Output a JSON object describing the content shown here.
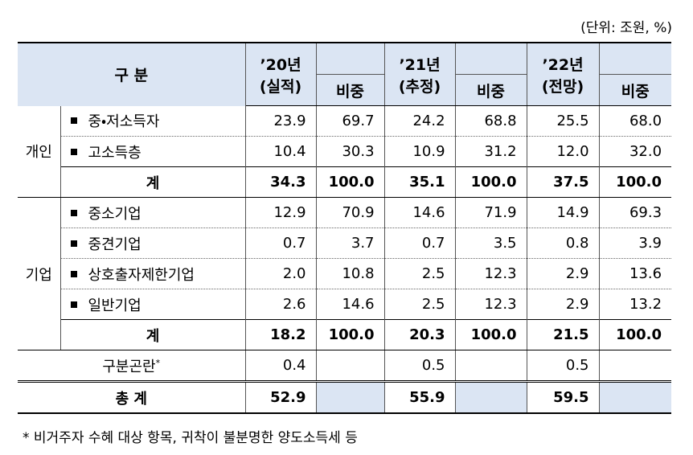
{
  "unit": "(단위: 조원, %)",
  "header": {
    "category": "구 분",
    "years": [
      {
        "year": "’20년",
        "basis": "(실적)",
        "share": "비중"
      },
      {
        "year": "’21년",
        "basis": "(추정)",
        "share": "비중"
      },
      {
        "year": "’22년",
        "basis": "(전망)",
        "share": "비중"
      }
    ]
  },
  "groups": [
    {
      "name": "개인",
      "rows": [
        {
          "label": "중・저소득자",
          "values": [
            "23.9",
            "69.7",
            "24.2",
            "68.8",
            "25.5",
            "68.0"
          ]
        },
        {
          "label": "고소득층",
          "values": [
            "10.4",
            "30.3",
            "10.9",
            "31.2",
            "12.0",
            "32.0"
          ]
        }
      ],
      "subtotal": {
        "label": "계",
        "values": [
          "34.3",
          "100.0",
          "35.1",
          "100.0",
          "37.5",
          "100.0"
        ]
      }
    },
    {
      "name": "기업",
      "rows": [
        {
          "label": "중소기업",
          "values": [
            "12.9",
            "70.9",
            "14.6",
            "71.9",
            "14.9",
            "69.3"
          ]
        },
        {
          "label": "중견기업",
          "values": [
            "0.7",
            "3.7",
            "0.7",
            "3.5",
            "0.8",
            "3.9"
          ]
        },
        {
          "label": "상호출자제한기업",
          "values": [
            "2.0",
            "10.8",
            "2.5",
            "12.3",
            "2.9",
            "13.6"
          ]
        },
        {
          "label": "일반기업",
          "values": [
            "2.6",
            "14.6",
            "2.5",
            "12.3",
            "2.9",
            "13.2"
          ]
        }
      ],
      "subtotal": {
        "label": "계",
        "values": [
          "18.2",
          "100.0",
          "20.3",
          "100.0",
          "21.5",
          "100.0"
        ]
      }
    }
  ],
  "unclassified": {
    "label": "구분곤란",
    "note_mark": "*",
    "values": [
      "0.4",
      "0.5",
      "0.5"
    ]
  },
  "total": {
    "label": "총 계",
    "values": [
      "52.9",
      "55.9",
      "59.5"
    ]
  },
  "footnote": "* 비거주자 수혜 대상 항목, 귀착이 불분명한 양도소득세 등"
}
